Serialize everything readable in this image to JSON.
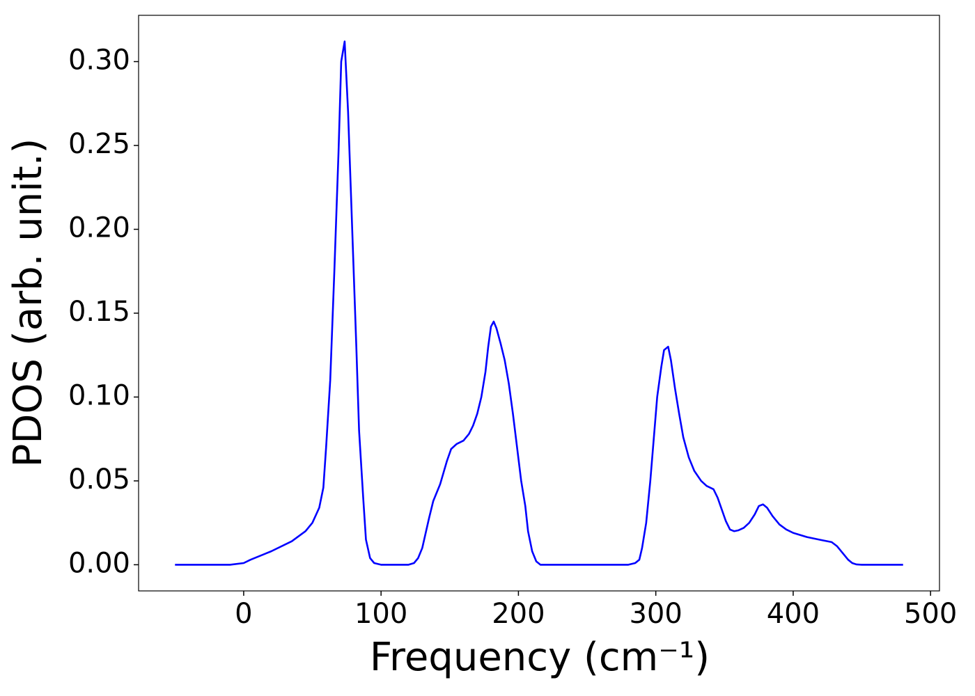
{
  "chart_data": {
    "type": "line",
    "xlabel": "Frequency (cm⁻¹)",
    "ylabel": "PDOS (arb. unit.)",
    "x": [
      -50,
      -10,
      0,
      5,
      20,
      35,
      45,
      50,
      55,
      58,
      60,
      63,
      66,
      69,
      71,
      73.5,
      76,
      79,
      82,
      84,
      87,
      89,
      92,
      95,
      100,
      120,
      124,
      127,
      130,
      135,
      138,
      143,
      148,
      151,
      155,
      160,
      164,
      167,
      170,
      173,
      176,
      178,
      180,
      182,
      184,
      187,
      190,
      193,
      196,
      199,
      202,
      205,
      207,
      210,
      213,
      216,
      280,
      285,
      288,
      290,
      293,
      296,
      299,
      301,
      304,
      306,
      309,
      311,
      314,
      317,
      320,
      324,
      328,
      333,
      337,
      342,
      345,
      348,
      351,
      354,
      357,
      360,
      364,
      368,
      372,
      375,
      378,
      381,
      385,
      390,
      395,
      400,
      410,
      420,
      428,
      432,
      436,
      440,
      443,
      446,
      450,
      480
    ],
    "series": [
      {
        "color": "#0000ff",
        "values": [
          0,
          0,
          0.001,
          0.003,
          0.008,
          0.014,
          0.02,
          0.025,
          0.034,
          0.046,
          0.07,
          0.11,
          0.175,
          0.245,
          0.3,
          0.312,
          0.27,
          0.2,
          0.13,
          0.08,
          0.04,
          0.015,
          0.004,
          0.001,
          0,
          0,
          0.001,
          0.004,
          0.01,
          0.028,
          0.038,
          0.048,
          0.062,
          0.069,
          0.072,
          0.074,
          0.078,
          0.083,
          0.09,
          0.1,
          0.115,
          0.13,
          0.142,
          0.145,
          0.141,
          0.132,
          0.122,
          0.108,
          0.09,
          0.07,
          0.05,
          0.035,
          0.02,
          0.008,
          0.002,
          0,
          0,
          0.001,
          0.003,
          0.01,
          0.025,
          0.05,
          0.08,
          0.1,
          0.118,
          0.128,
          0.13,
          0.122,
          0.105,
          0.09,
          0.076,
          0.064,
          0.056,
          0.05,
          0.047,
          0.045,
          0.04,
          0.033,
          0.026,
          0.021,
          0.02,
          0.0205,
          0.022,
          0.025,
          0.03,
          0.035,
          0.036,
          0.034,
          0.029,
          0.024,
          0.021,
          0.019,
          0.0165,
          0.0148,
          0.0135,
          0.011,
          0.007,
          0.003,
          0.001,
          0.0002,
          0,
          0
        ]
      }
    ],
    "xlim": [
      -76.5,
      506.5
    ],
    "xticks": [
      0,
      100,
      200,
      300,
      400,
      500
    ],
    "ylim": [
      -0.0156,
      0.3276
    ],
    "yticks": [
      {
        "value": 0,
        "label": "0.00"
      },
      {
        "value": 0.05,
        "label": "0.05"
      },
      {
        "value": 0.1,
        "label": "0.10"
      },
      {
        "value": 0.15,
        "label": "0.15"
      },
      {
        "value": 0.2,
        "label": "0.20"
      },
      {
        "value": 0.25,
        "label": "0.25"
      },
      {
        "value": 0.3,
        "label": "0.30"
      }
    ],
    "grid": false
  }
}
